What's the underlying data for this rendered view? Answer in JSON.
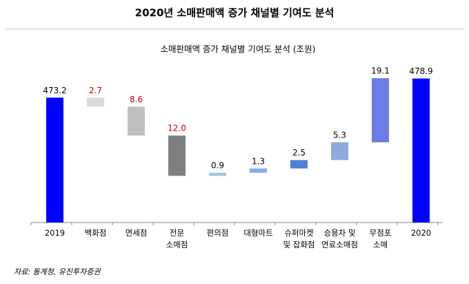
{
  "title": "2020년 소매판매액 증가 채널별 기여도 분석",
  "source": "자료: 통계청, 유진투자증권",
  "chart_data": {
    "type": "waterfall",
    "title": "소매판매액 증가 채널별 기여도 분석 (조원)",
    "categories": [
      [
        "2019"
      ],
      [
        "백화점"
      ],
      [
        "면세점"
      ],
      [
        "전문",
        "소매점"
      ],
      [
        "편의점"
      ],
      [
        "대형마트"
      ],
      [
        "슈퍼마켓",
        "및 잡화점"
      ],
      [
        "승용차 및",
        "연료소매점"
      ],
      [
        "무점포",
        "소매"
      ],
      [
        "2020"
      ]
    ],
    "measures": [
      "total",
      "relative",
      "relative",
      "relative",
      "relative",
      "relative",
      "relative",
      "relative",
      "relative",
      "total"
    ],
    "values": [
      473.2,
      -2.7,
      -8.6,
      -12.0,
      0.9,
      1.3,
      2.5,
      5.3,
      19.1,
      478.9
    ],
    "value_labels": [
      "473.2",
      "2.7",
      "8.6",
      "12.0",
      "0.9",
      "1.3",
      "2.5",
      "5.3",
      "19.1",
      "478.9"
    ],
    "colors": [
      "#0000ff",
      "#d9d9d9",
      "#bfbfbf",
      "#7f7f7f",
      "#9dc3e6",
      "#7fb0e8",
      "#4f7fd6",
      "#8eaadc",
      "#6b7de6",
      "#0000ff"
    ],
    "label_colors": [
      "#000000",
      "#c00000",
      "#c00000",
      "#c00000",
      "#000000",
      "#000000",
      "#000000",
      "#000000",
      "#000000",
      "#000000"
    ],
    "ylim": [
      436,
      485
    ]
  }
}
